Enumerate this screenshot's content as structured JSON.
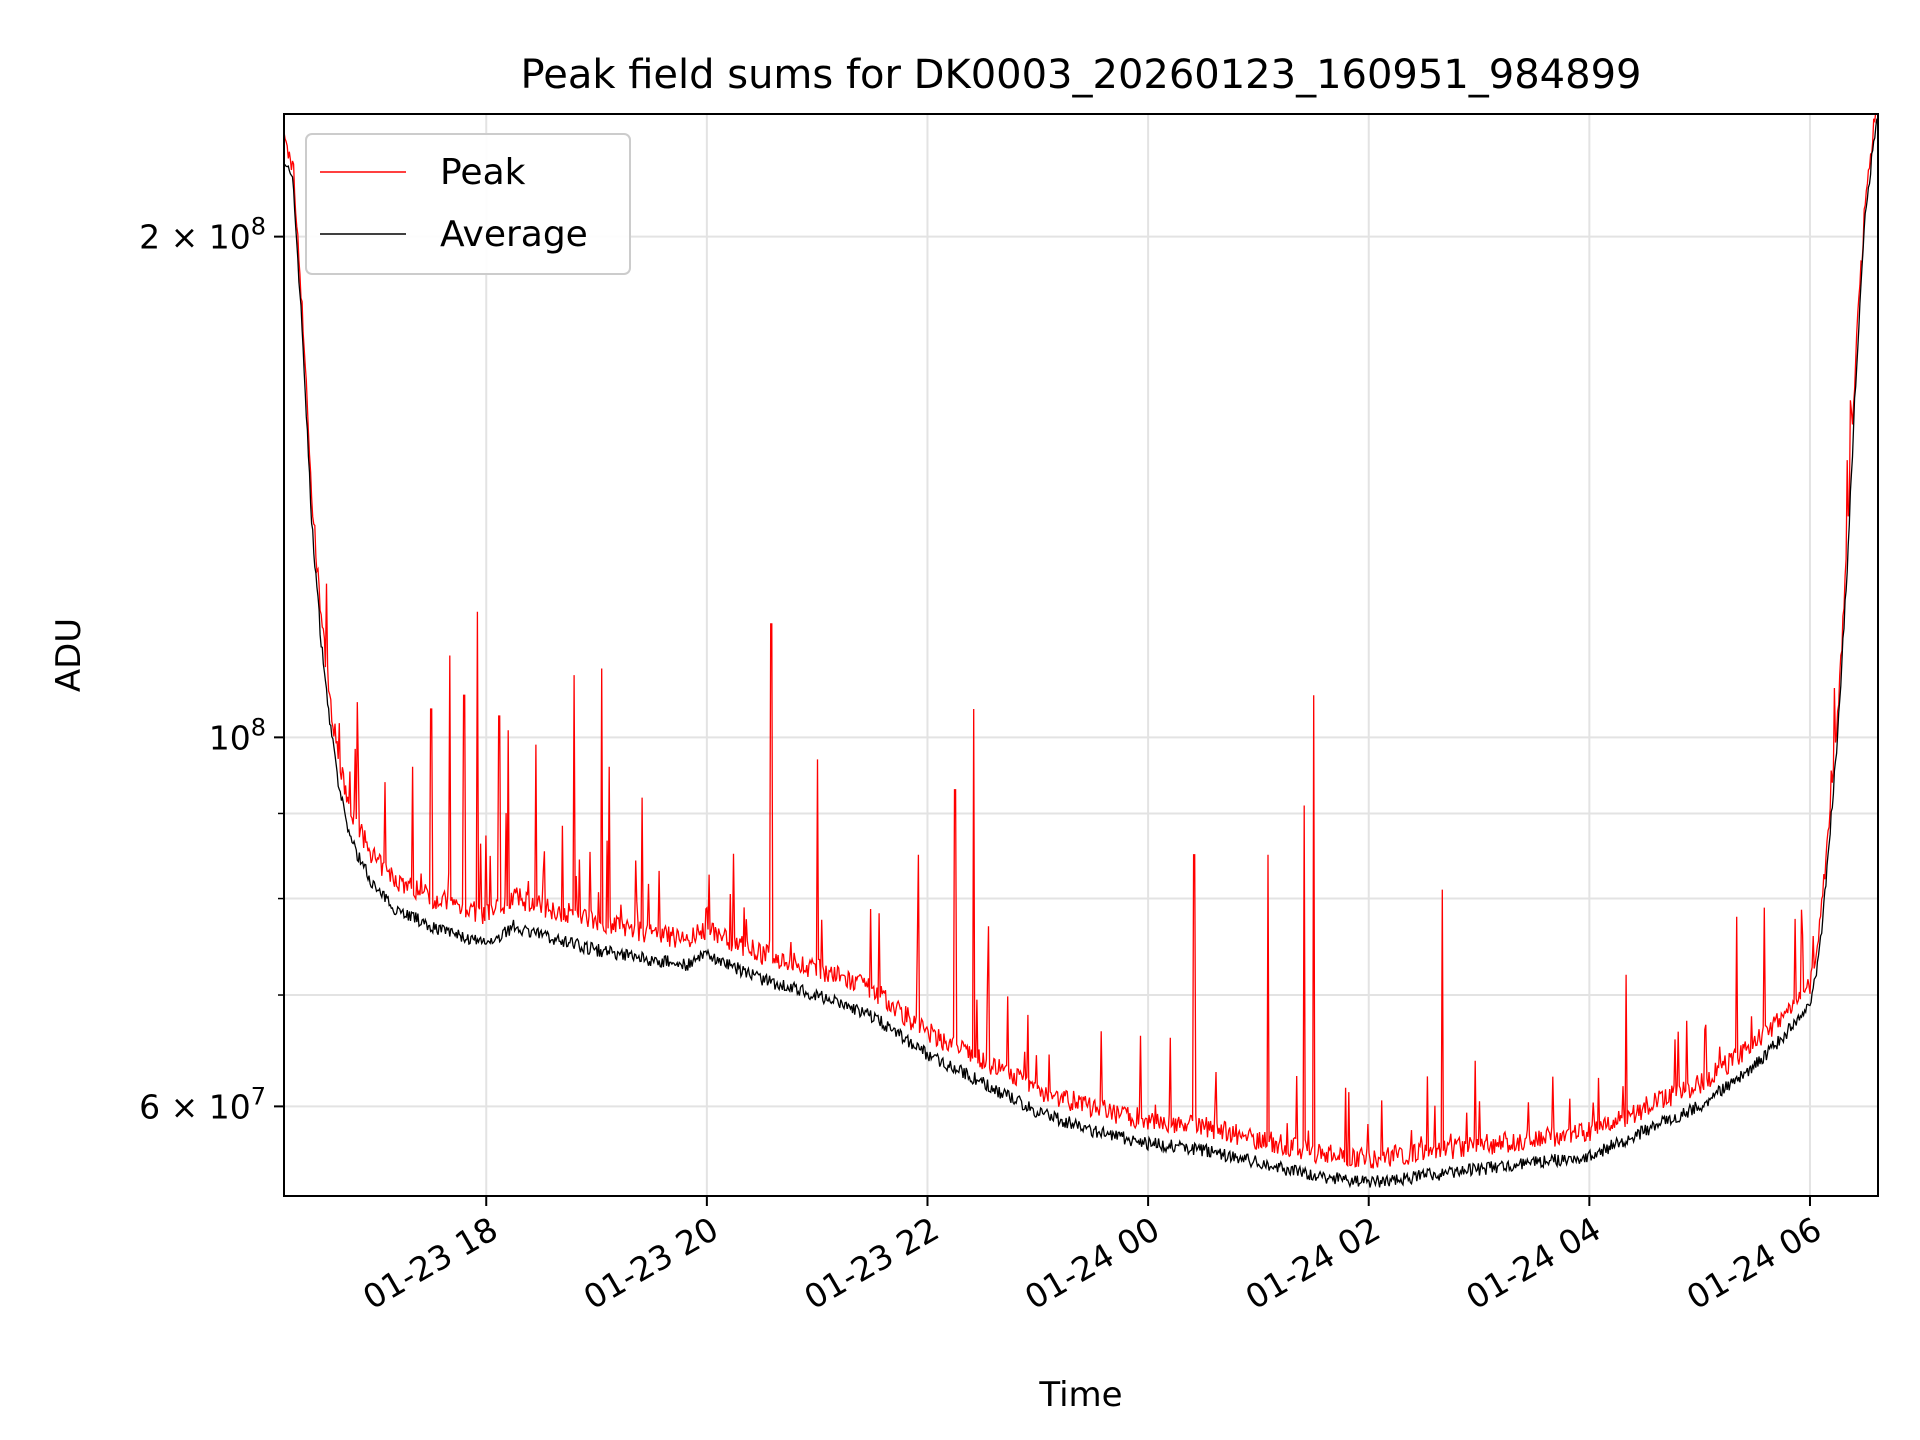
{
  "chart_data": {
    "type": "line",
    "title": "Peak field sums for DK0003_20260123_160951_984899",
    "xlabel": "Time",
    "ylabel": "ADU",
    "y_scale": "log",
    "grid": true,
    "legend_position": "top-left",
    "xlim": [
      "2026-01-23 16:10",
      "2026-01-24 06:37"
    ],
    "ylim": [
      53000000,
      237000000
    ],
    "x_tick_labels": [
      "01-23 18",
      "01-23 20",
      "01-23 22",
      "01-24 00",
      "01-24 02",
      "01-24 04",
      "01-24 06"
    ],
    "x_tick_times": [
      "2026-01-23 18:00",
      "2026-01-23 20:00",
      "2026-01-23 22:00",
      "2026-01-24 00:00",
      "2026-01-24 02:00",
      "2026-01-24 04:00",
      "2026-01-24 06:00"
    ],
    "y_major_ticks": [
      {
        "value": 60000000,
        "mantissa": "6",
        "exponent": "7"
      },
      {
        "value": 100000000,
        "mantissa": "",
        "exponent": "8"
      },
      {
        "value": 200000000,
        "mantissa": "2",
        "exponent": "8"
      }
    ],
    "y_minor_ticks": [
      70000000,
      80000000,
      90000000
    ],
    "x": [
      "2026-01-23 16:10",
      "2026-01-23 16:15",
      "2026-01-23 16:20",
      "2026-01-23 16:25",
      "2026-01-23 16:30",
      "2026-01-23 16:35",
      "2026-01-23 16:40",
      "2026-01-23 16:45",
      "2026-01-23 16:50",
      "2026-01-23 16:55",
      "2026-01-23 17:00",
      "2026-01-23 17:10",
      "2026-01-23 17:20",
      "2026-01-23 17:30",
      "2026-01-23 17:45",
      "2026-01-23 18:00",
      "2026-01-23 18:15",
      "2026-01-23 18:30",
      "2026-01-23 19:00",
      "2026-01-23 19:30",
      "2026-01-23 19:50",
      "2026-01-23 20:00",
      "2026-01-23 20:30",
      "2026-01-23 21:00",
      "2026-01-23 21:30",
      "2026-01-23 22:00",
      "2026-01-23 22:30",
      "2026-01-23 23:00",
      "2026-01-23 23:30",
      "2026-01-24 00:00",
      "2026-01-24 00:30",
      "2026-01-24 01:00",
      "2026-01-24 01:30",
      "2026-01-24 02:00",
      "2026-01-24 02:30",
      "2026-01-24 03:00",
      "2026-01-24 03:30",
      "2026-01-24 04:00",
      "2026-01-24 04:30",
      "2026-01-24 05:00",
      "2026-01-24 05:30",
      "2026-01-24 05:45",
      "2026-01-24 06:00",
      "2026-01-24 06:05",
      "2026-01-24 06:10",
      "2026-01-24 06:15",
      "2026-01-24 06:20",
      "2026-01-24 06:25",
      "2026-01-24 06:30",
      "2026-01-24 06:35",
      "2026-01-24 06:37"
    ],
    "series": [
      {
        "name": "Average",
        "color": "#000000",
        "values": [
          223000000,
          215000000,
          175000000,
          135000000,
          115000000,
          102000000,
          93000000,
          88000000,
          85000000,
          83000000,
          81000000,
          79000000,
          78000000,
          77000000,
          76000000,
          75000000,
          77000000,
          76000000,
          74500000,
          73500000,
          73000000,
          74000000,
          71500000,
          70000000,
          68000000,
          64500000,
          62000000,
          59500000,
          58000000,
          57000000,
          56500000,
          55500000,
          54500000,
          54000000,
          54500000,
          55000000,
          55500000,
          56000000,
          58000000,
          60000000,
          63500000,
          66000000,
          69000000,
          74000000,
          85000000,
          100000000,
          125000000,
          165000000,
          205000000,
          230000000,
          236000000
        ]
      },
      {
        "name": "Peak",
        "color": "#ff0000",
        "values": [
          225000000,
          217000000,
          178000000,
          138000000,
          117000000,
          104000000,
          95000000,
          90000000,
          87000000,
          85000000,
          83000000,
          81000000,
          80000000,
          79000000,
          78000000,
          77000000,
          79000000,
          78000000,
          76500000,
          75000000,
          74500000,
          75500000,
          73000000,
          71500000,
          69500000,
          65500000,
          63000000,
          60500000,
          59000000,
          58000000,
          57500000,
          56500000,
          55500000,
          55000000,
          55500000,
          56000000,
          56500000,
          57000000,
          59000000,
          61000000,
          64500000,
          67000000,
          70000000,
          75000000,
          86000000,
          101000000,
          127000000,
          167000000,
          207000000,
          231000000,
          237000000
        ]
      }
    ],
    "peak_spikes": [
      {
        "t": "2026-01-23 16:40",
        "y": 102000000
      },
      {
        "t": "2026-01-23 16:50",
        "y": 105000000
      },
      {
        "t": "2026-01-23 17:05",
        "y": 94000000
      },
      {
        "t": "2026-01-23 17:20",
        "y": 96000000
      },
      {
        "t": "2026-01-23 17:30",
        "y": 104000000
      },
      {
        "t": "2026-01-23 17:40",
        "y": 112000000
      },
      {
        "t": "2026-01-23 17:48",
        "y": 106000000
      },
      {
        "t": "2026-01-23 17:55",
        "y": 119000000
      },
      {
        "t": "2026-01-23 18:07",
        "y": 103000000
      },
      {
        "t": "2026-01-23 18:12",
        "y": 101000000
      },
      {
        "t": "2026-01-23 18:27",
        "y": 99000000
      },
      {
        "t": "2026-01-23 18:48",
        "y": 109000000
      },
      {
        "t": "2026-01-23 19:03",
        "y": 110000000
      },
      {
        "t": "2026-01-23 19:07",
        "y": 96000000
      },
      {
        "t": "2026-01-23 19:25",
        "y": 92000000
      },
      {
        "t": "2026-01-23 20:35",
        "y": 117000000
      },
      {
        "t": "2026-01-23 21:00",
        "y": 97000000
      },
      {
        "t": "2026-01-23 21:55",
        "y": 85000000
      },
      {
        "t": "2026-01-23 22:15",
        "y": 93000000
      },
      {
        "t": "2026-01-23 22:25",
        "y": 104000000
      },
      {
        "t": "2026-01-23 22:33",
        "y": 77000000
      },
      {
        "t": "2026-01-24 00:25",
        "y": 85000000
      },
      {
        "t": "2026-01-24 01:05",
        "y": 85000000
      },
      {
        "t": "2026-01-24 01:25",
        "y": 91000000
      },
      {
        "t": "2026-01-24 01:30",
        "y": 106000000
      },
      {
        "t": "2026-01-24 02:40",
        "y": 81000000
      },
      {
        "t": "2026-01-24 04:20",
        "y": 72000000
      },
      {
        "t": "2026-01-24 05:20",
        "y": 78000000
      },
      {
        "t": "2026-01-24 05:35",
        "y": 79000000
      }
    ]
  }
}
